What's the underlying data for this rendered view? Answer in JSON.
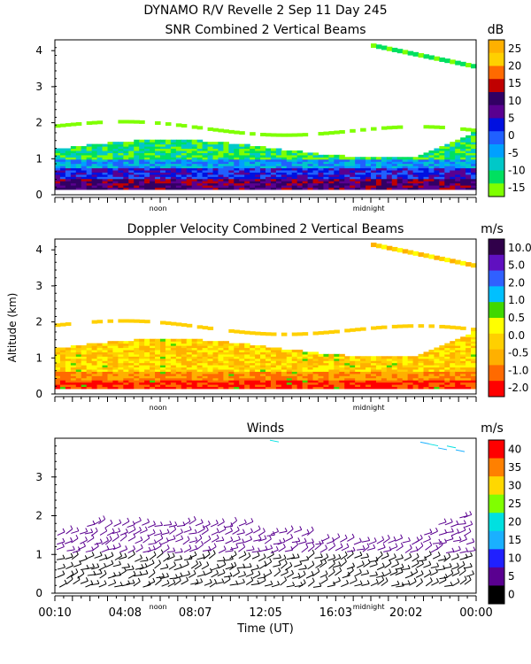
{
  "figure": {
    "title_line1": "DYNAMO R/V Revelle    2 Sep 11 Day 245",
    "ylabel": "Altitude (km)",
    "xlabel": "Time (UT)",
    "x_ticks": [
      "00:10",
      "04:08",
      "08:07",
      "12:05",
      "16:03",
      "20:02",
      "00:00"
    ],
    "noon_label": "noon",
    "midnight_label": "midnight"
  },
  "colors": {
    "snr": [
      "#7fff00",
      "#00e060",
      "#00c8c8",
      "#00a0ff",
      "#2060ff",
      "#0010e0",
      "#5a0090",
      "#320064",
      "#c00000"
    ],
    "dv": [
      "#ff0000",
      "#ff6a00",
      "#ffb000",
      "#ffd000",
      "#ffff00",
      "#40d800",
      "#00c0ff",
      "#3060ff",
      "#6010c0",
      "#30004a"
    ],
    "winds": [
      "#000000",
      "#5a0090",
      "#2020ff",
      "#1ab0ff",
      "#00e0e0",
      "#80ff00",
      "#ffd800",
      "#ff8000",
      "#ff0000"
    ]
  },
  "chart_data": [
    {
      "type": "heatmap",
      "title": "SNR Combined 2 Vertical Beams",
      "units": "dB",
      "ylabel": "Altitude (km)",
      "y_ticks": [
        "0",
        "1",
        "2",
        "3",
        "4"
      ],
      "ylim": [
        0,
        4.3
      ],
      "colorbar_labels": [
        "25",
        "20",
        "15",
        "10",
        "5",
        "0",
        "-5",
        "-10",
        "-15"
      ],
      "x_ticks": [
        "noon",
        "midnight"
      ]
    },
    {
      "type": "heatmap",
      "title": "Doppler Velocity Combined 2 Vertical Beams",
      "units": "m/s",
      "ylabel": "Altitude (km)",
      "y_ticks": [
        "0",
        "1",
        "2",
        "3",
        "4"
      ],
      "ylim": [
        0,
        4.3
      ],
      "colorbar_labels": [
        "10.0",
        "5.0",
        "2.0",
        "1.0",
        "0.5",
        "0.0",
        "-0.5",
        "-1.0",
        "-2.0"
      ],
      "x_ticks": [
        "noon",
        "midnight"
      ]
    },
    {
      "type": "scatter",
      "title": "Winds",
      "units": "m/s",
      "ylabel": "Altitude (km)",
      "y_ticks": [
        "0",
        "1",
        "2",
        "3"
      ],
      "ylim": [
        0,
        4.0
      ],
      "colorbar_labels": [
        "40",
        "35",
        "30",
        "25",
        "20",
        "15",
        "10",
        "5",
        "0"
      ],
      "x_ticks": [
        "00:10",
        "04:08",
        "08:07",
        "12:05",
        "16:03",
        "20:02",
        "00:00"
      ]
    }
  ]
}
